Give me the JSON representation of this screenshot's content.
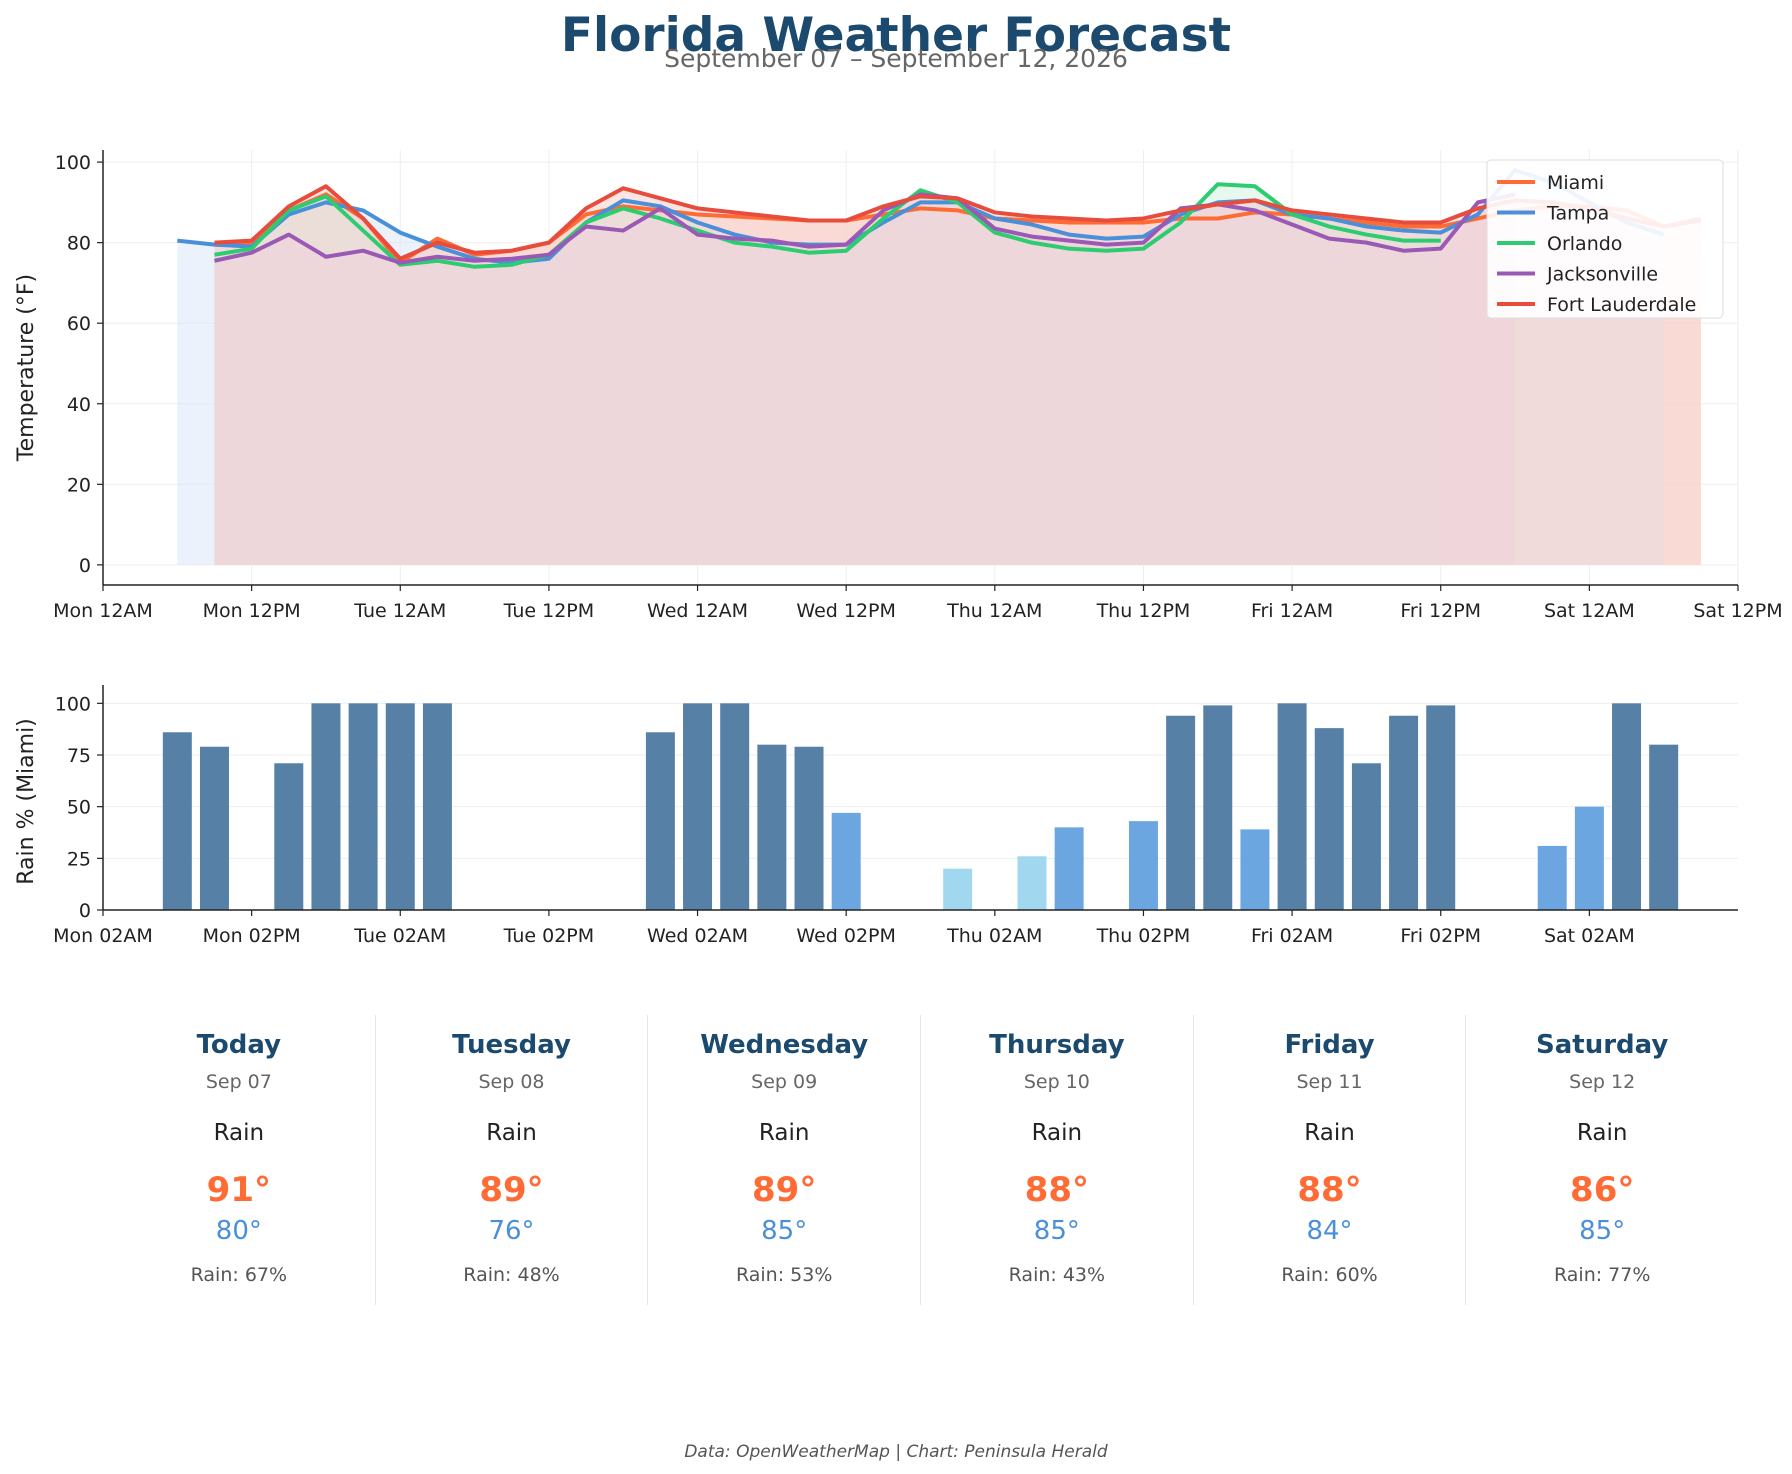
{
  "title": "Florida Weather Forecast",
  "subtitle": "September 07 – September 12, 2026",
  "footer": "Data: OpenWeatherMap | Chart: Peninsula Herald",
  "chart_data": [
    {
      "type": "line",
      "ylabel": "Temperature (°F)",
      "ylim": [
        0,
        100
      ],
      "yticks": [
        0,
        20,
        40,
        60,
        80,
        100
      ],
      "xlim": [
        0,
        132
      ],
      "xticks": [
        {
          "h": 0,
          "label": "Mon 12AM"
        },
        {
          "h": 12,
          "label": "Mon 12PM"
        },
        {
          "h": 24,
          "label": "Tue 12AM"
        },
        {
          "h": 36,
          "label": "Tue 12PM"
        },
        {
          "h": 48,
          "label": "Wed 12AM"
        },
        {
          "h": 60,
          "label": "Wed 12PM"
        },
        {
          "h": 72,
          "label": "Thu 12AM"
        },
        {
          "h": 84,
          "label": "Thu 12PM"
        },
        {
          "h": 96,
          "label": "Fri 12AM"
        },
        {
          "h": 108,
          "label": "Fri 12PM"
        },
        {
          "h": 120,
          "label": "Sat 12AM"
        },
        {
          "h": 132,
          "label": "Sat 12PM"
        }
      ],
      "grid": true,
      "legend_position": "top-right",
      "series": [
        {
          "name": "Miami",
          "color": "#ff6b35",
          "fill": "#ffd2c2",
          "x": [
            9,
            12,
            15,
            18,
            21,
            24,
            27,
            30,
            33,
            36,
            39,
            42,
            45,
            48,
            51,
            54,
            57,
            60,
            63,
            66,
            69,
            72,
            75,
            78,
            81,
            84,
            87,
            90,
            93,
            96,
            99,
            102,
            105,
            108,
            111,
            114,
            117,
            120,
            123,
            126,
            129
          ],
          "y": [
            79.5,
            80,
            88,
            92,
            86,
            75,
            81,
            77,
            78,
            80,
            87,
            89,
            88,
            87,
            86.5,
            86,
            85.5,
            85.5,
            87,
            88.5,
            88,
            86,
            85.5,
            85,
            85,
            85,
            86,
            86,
            87.5,
            87,
            86,
            85,
            84,
            84,
            86,
            88,
            89,
            89,
            88,
            84,
            86
          ]
        },
        {
          "name": "Tampa",
          "color": "#4a90d9",
          "fill": "#dbe8f7",
          "x": [
            6,
            9,
            12,
            15,
            18,
            21,
            24,
            27,
            30,
            33,
            36,
            39,
            42,
            45,
            48,
            51,
            54,
            57,
            60,
            63,
            66,
            69,
            72,
            75,
            78,
            81,
            84,
            87,
            90,
            93,
            96,
            99,
            102,
            105,
            108,
            111,
            114,
            117,
            120,
            123,
            126
          ],
          "y": [
            80.5,
            79.5,
            79,
            87,
            90,
            88,
            82.5,
            79,
            76,
            75,
            76,
            85,
            90.5,
            89,
            85,
            82,
            80,
            79.5,
            79.5,
            85,
            90,
            90,
            86,
            84.5,
            82,
            81,
            81.5,
            87,
            90,
            90.5,
            87,
            86,
            84,
            83,
            82.5,
            87,
            98,
            95,
            90,
            85,
            82
          ]
        },
        {
          "name": "Orlando",
          "color": "#2ecc71",
          "fill": "#d4f2e0",
          "x": [
            9,
            12,
            15,
            18,
            21,
            24,
            27,
            30,
            33,
            36,
            39,
            42,
            45,
            48,
            51,
            54,
            57,
            60,
            63,
            66,
            69,
            72,
            75,
            78,
            81,
            84,
            87,
            90,
            93,
            96,
            99,
            102,
            105,
            108
          ],
          "y": [
            77,
            78.5,
            88,
            91.5,
            83,
            74.5,
            75.5,
            74,
            74.5,
            77,
            85,
            88.5,
            86,
            83,
            80,
            79,
            77.5,
            78,
            86,
            93,
            90,
            82.5,
            80,
            78.5,
            78,
            78.5,
            85,
            94.5,
            94,
            87,
            84,
            82,
            80.5,
            80.5
          ]
        },
        {
          "name": "Jacksonville",
          "color": "#9b59b6",
          "fill": "#e6d6ee",
          "x": [
            9,
            12,
            15,
            18,
            21,
            24,
            27,
            30,
            33,
            36,
            39,
            42,
            45,
            48,
            51,
            54,
            57,
            60,
            63,
            66,
            69,
            72,
            75,
            78,
            81,
            84,
            87,
            90,
            93,
            96,
            99,
            102,
            105,
            108,
            111,
            114
          ],
          "y": [
            75.5,
            77.5,
            82,
            76.5,
            78,
            75,
            76.5,
            75.5,
            76,
            77,
            84,
            83,
            88.5,
            82,
            81,
            80.5,
            79,
            79.5,
            88,
            92,
            91,
            83.5,
            81.5,
            80.5,
            79.5,
            80,
            88.5,
            89.5,
            88,
            84.5,
            81,
            80,
            78,
            78.5,
            90,
            92
          ]
        },
        {
          "name": "Fort Lauderdale",
          "color": "#e74c3c",
          "fill": "#f5d0cc",
          "x": [
            9,
            12,
            15,
            18,
            21,
            24,
            27,
            30,
            33,
            36,
            39,
            42,
            45,
            48,
            51,
            54,
            57,
            60,
            63,
            66,
            69,
            72,
            75,
            78,
            81,
            84,
            87,
            90,
            93,
            96,
            99,
            102,
            105,
            108,
            111,
            114,
            117,
            120,
            123,
            126,
            129
          ],
          "y": [
            80,
            80.5,
            89,
            94,
            86,
            76,
            80,
            77.5,
            78,
            80,
            88.5,
            93.5,
            91,
            88.5,
            87.5,
            86.5,
            85.5,
            85.5,
            89,
            91.5,
            91,
            87.5,
            86.5,
            86,
            85.5,
            86,
            88,
            89.5,
            90.5,
            88,
            87,
            86,
            85,
            85,
            88.5,
            90.5,
            90,
            88.5,
            86,
            84,
            85.5
          ]
        }
      ]
    },
    {
      "type": "bar",
      "ylabel": "Rain % (Miami)",
      "ylim": [
        0,
        105
      ],
      "yticks": [
        0,
        25,
        50,
        75,
        100
      ],
      "xlim": [
        2,
        134
      ],
      "xticks": [
        {
          "h": 2,
          "label": "Mon 02AM"
        },
        {
          "h": 14,
          "label": "Mon 02PM"
        },
        {
          "h": 26,
          "label": "Tue 02AM"
        },
        {
          "h": 38,
          "label": "Tue 02PM"
        },
        {
          "h": 50,
          "label": "Wed 02AM"
        },
        {
          "h": 62,
          "label": "Wed 02PM"
        },
        {
          "h": 74,
          "label": "Thu 02AM"
        },
        {
          "h": 86,
          "label": "Thu 02PM"
        },
        {
          "h": 98,
          "label": "Fri 02AM"
        },
        {
          "h": 110,
          "label": "Fri 02PM"
        },
        {
          "h": 122,
          "label": "Sat 02AM"
        }
      ],
      "grid": true,
      "color_scale": {
        "high": "#5680a5",
        "mid": "#6ca6e0",
        "low": "#a2d7f0"
      },
      "x": [
        8,
        11,
        14,
        17,
        20,
        23,
        26,
        29,
        32,
        35,
        38,
        41,
        44,
        47,
        50,
        53,
        56,
        59,
        62,
        65,
        68,
        71,
        74,
        77,
        80,
        83,
        86,
        89,
        92,
        95,
        98,
        101,
        104,
        107,
        110,
        113,
        116,
        119,
        122,
        125,
        128
      ],
      "values": [
        86,
        79,
        0,
        71,
        100,
        100,
        100,
        100,
        0,
        0,
        0,
        0,
        0,
        86,
        100,
        100,
        80,
        79,
        47,
        0,
        0,
        20,
        0,
        26,
        40,
        0,
        43,
        94,
        99,
        39,
        100,
        88,
        71,
        94,
        99,
        0,
        0,
        31,
        50,
        100,
        80
      ]
    }
  ],
  "forecast": [
    {
      "day": "Today",
      "date": "Sep 07",
      "condition": "Rain",
      "high": "91°",
      "low": "80°",
      "rain": "Rain: 67%"
    },
    {
      "day": "Tuesday",
      "date": "Sep 08",
      "condition": "Rain",
      "high": "89°",
      "low": "76°",
      "rain": "Rain: 48%"
    },
    {
      "day": "Wednesday",
      "date": "Sep 09",
      "condition": "Rain",
      "high": "89°",
      "low": "85°",
      "rain": "Rain: 53%"
    },
    {
      "day": "Thursday",
      "date": "Sep 10",
      "condition": "Rain",
      "high": "88°",
      "low": "85°",
      "rain": "Rain: 43%"
    },
    {
      "day": "Friday",
      "date": "Sep 11",
      "condition": "Rain",
      "high": "88°",
      "low": "84°",
      "rain": "Rain: 60%"
    },
    {
      "day": "Saturday",
      "date": "Sep 12",
      "condition": "Rain",
      "high": "86°",
      "low": "85°",
      "rain": "Rain: 77%"
    }
  ]
}
